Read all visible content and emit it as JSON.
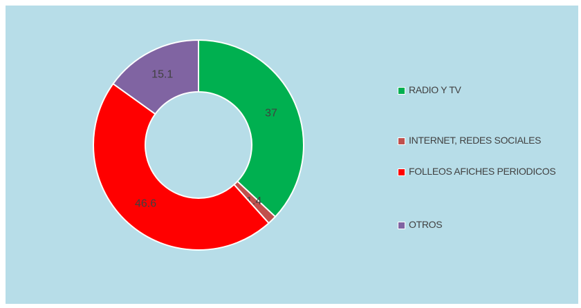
{
  "chart_data": {
    "type": "donut",
    "categories": [
      "RADIO Y TV",
      "INTERNET, REDES SOCIALES",
      "FOLLEOS AFICHES PERIODICOS",
      "OTROS"
    ],
    "values": [
      37,
      1.4,
      46.6,
      15.1
    ],
    "colors": [
      "#00b050",
      "#c0504d",
      "#ff0000",
      "#8064a2"
    ],
    "legend": "right"
  }
}
